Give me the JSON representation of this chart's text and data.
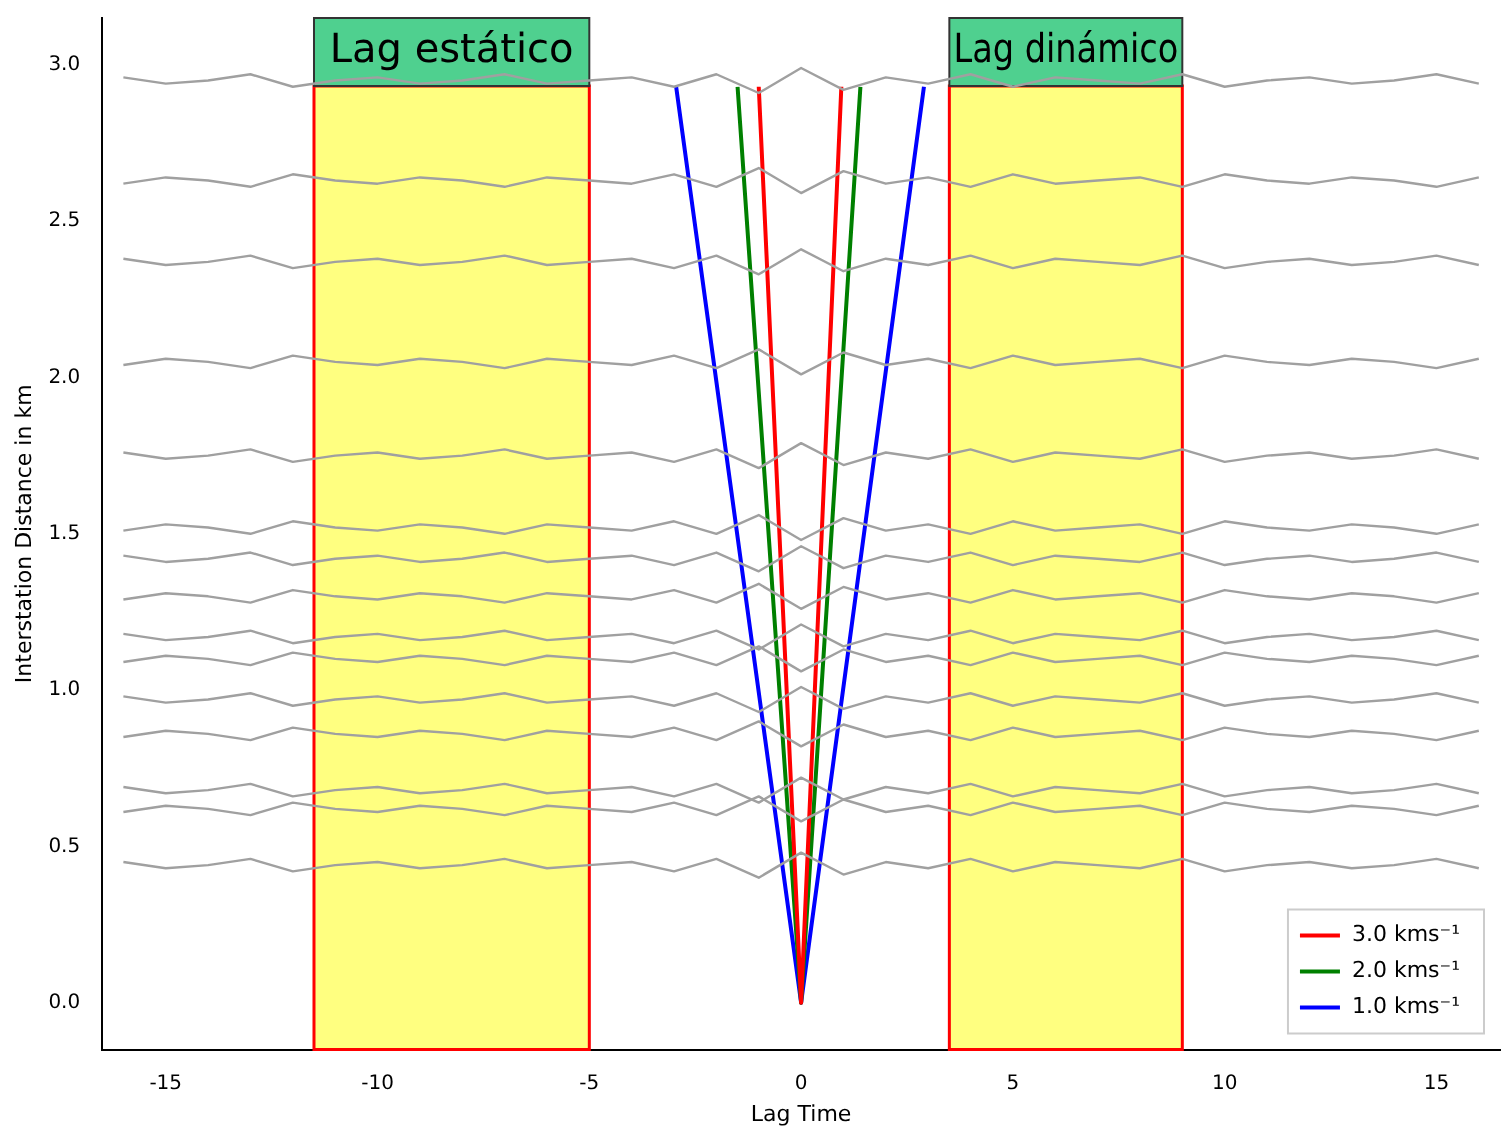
{
  "chart_data": {
    "type": "line",
    "xlabel": "Lag Time",
    "ylabel": "Interstation Distance in km",
    "marker": "none",
    "legend": "bottom right",
    "x": [
      -16,
      -15,
      -14,
      -13,
      -12,
      -11,
      -10,
      -9,
      -8,
      -7,
      -6,
      -5,
      -4,
      -3,
      -2,
      -1,
      0,
      1,
      2,
      3,
      4,
      5,
      6,
      7,
      8,
      9,
      10,
      11,
      12,
      13,
      14,
      15,
      16
    ],
    "xlim": [
      -16.5,
      16.5
    ],
    "xticks": [
      -15,
      -10,
      -5,
      0,
      5,
      10,
      15
    ],
    "ylim": [
      -0.15,
      3.15
    ],
    "yticks": [
      {
        "value": 0,
        "label": "0.0"
      },
      0.5,
      {
        "value": 1,
        "label": "1.0"
      },
      1.5,
      {
        "value": 2,
        "label": "2.0"
      },
      2.5,
      {
        "value": 3,
        "label": "3.0"
      }
    ],
    "bands": [
      {
        "axis": "x",
        "from": -11.5,
        "to": -5,
        "label": "Lag estático",
        "color": "#ffff80"
      },
      {
        "axis": "x",
        "from": 3.5,
        "to": 9,
        "label": "Lag dinámico",
        "color": "#ffff80"
      }
    ],
    "series": [
      {
        "color": "#a0a0a0",
        "values": [
          0.45,
          0.43,
          0.44,
          0.46,
          0.42,
          0.44,
          0.45,
          0.43,
          0.44,
          0.46,
          0.43,
          0.44,
          0.45,
          0.42,
          0.46,
          0.4,
          0.48,
          0.41,
          0.45,
          0.43,
          0.46,
          0.42,
          0.45,
          0.44,
          0.43,
          0.46,
          0.42,
          0.44,
          0.45,
          0.43,
          0.44,
          0.46,
          0.43
        ]
      },
      {
        "color": "#a0a0a0",
        "values": [
          0.61,
          0.63,
          0.62,
          0.6,
          0.64,
          0.62,
          0.61,
          0.63,
          0.62,
          0.6,
          0.63,
          0.62,
          0.61,
          0.64,
          0.6,
          0.66,
          0.58,
          0.65,
          0.61,
          0.63,
          0.6,
          0.64,
          0.61,
          0.62,
          0.63,
          0.6,
          0.64,
          0.62,
          0.61,
          0.63,
          0.62,
          0.6,
          0.63
        ]
      },
      {
        "color": "#a0a0a0",
        "values": [
          0.69,
          0.67,
          0.68,
          0.7,
          0.66,
          0.68,
          0.69,
          0.67,
          0.68,
          0.7,
          0.67,
          0.68,
          0.69,
          0.66,
          0.7,
          0.64,
          0.72,
          0.65,
          0.69,
          0.67,
          0.7,
          0.66,
          0.69,
          0.68,
          0.67,
          0.7,
          0.66,
          0.68,
          0.69,
          0.67,
          0.68,
          0.7,
          0.67
        ]
      },
      {
        "color": "#a0a0a0",
        "values": [
          0.85,
          0.87,
          0.86,
          0.84,
          0.88,
          0.86,
          0.85,
          0.87,
          0.86,
          0.84,
          0.87,
          0.86,
          0.85,
          0.88,
          0.84,
          0.9,
          0.82,
          0.89,
          0.85,
          0.87,
          0.84,
          0.88,
          0.85,
          0.86,
          0.87,
          0.84,
          0.88,
          0.86,
          0.85,
          0.87,
          0.86,
          0.84,
          0.87
        ]
      },
      {
        "color": "#a0a0a0",
        "values": [
          0.98,
          0.96,
          0.97,
          0.99,
          0.95,
          0.97,
          0.98,
          0.96,
          0.97,
          0.99,
          0.96,
          0.97,
          0.98,
          0.95,
          0.99,
          0.93,
          1.01,
          0.94,
          0.98,
          0.96,
          0.99,
          0.95,
          0.98,
          0.97,
          0.96,
          0.99,
          0.95,
          0.97,
          0.98,
          0.96,
          0.97,
          0.99,
          0.96
        ]
      },
      {
        "color": "#a0a0a0",
        "values": [
          1.09,
          1.11,
          1.1,
          1.08,
          1.12,
          1.1,
          1.09,
          1.11,
          1.1,
          1.08,
          1.11,
          1.1,
          1.09,
          1.12,
          1.08,
          1.14,
          1.06,
          1.13,
          1.09,
          1.11,
          1.08,
          1.12,
          1.09,
          1.1,
          1.11,
          1.08,
          1.12,
          1.1,
          1.09,
          1.11,
          1.1,
          1.08,
          1.11
        ]
      },
      {
        "color": "#a0a0a0",
        "values": [
          1.18,
          1.16,
          1.17,
          1.19,
          1.15,
          1.17,
          1.18,
          1.16,
          1.17,
          1.19,
          1.16,
          1.17,
          1.18,
          1.15,
          1.19,
          1.13,
          1.21,
          1.14,
          1.18,
          1.16,
          1.19,
          1.15,
          1.18,
          1.17,
          1.16,
          1.19,
          1.15,
          1.17,
          1.18,
          1.16,
          1.17,
          1.19,
          1.16
        ]
      },
      {
        "color": "#a0a0a0",
        "values": [
          1.29,
          1.31,
          1.3,
          1.28,
          1.32,
          1.3,
          1.29,
          1.31,
          1.3,
          1.28,
          1.31,
          1.3,
          1.29,
          1.32,
          1.28,
          1.34,
          1.26,
          1.33,
          1.29,
          1.31,
          1.28,
          1.32,
          1.29,
          1.3,
          1.31,
          1.28,
          1.32,
          1.3,
          1.29,
          1.31,
          1.3,
          1.28,
          1.31
        ]
      },
      {
        "color": "#a0a0a0",
        "values": [
          1.43,
          1.41,
          1.42,
          1.44,
          1.4,
          1.42,
          1.43,
          1.41,
          1.42,
          1.44,
          1.41,
          1.42,
          1.43,
          1.4,
          1.44,
          1.38,
          1.46,
          1.39,
          1.43,
          1.41,
          1.44,
          1.4,
          1.43,
          1.42,
          1.41,
          1.44,
          1.4,
          1.42,
          1.43,
          1.41,
          1.42,
          1.44,
          1.41
        ]
      },
      {
        "color": "#a0a0a0",
        "values": [
          1.51,
          1.53,
          1.52,
          1.5,
          1.54,
          1.52,
          1.51,
          1.53,
          1.52,
          1.5,
          1.53,
          1.52,
          1.51,
          1.54,
          1.5,
          1.56,
          1.48,
          1.55,
          1.51,
          1.53,
          1.5,
          1.54,
          1.51,
          1.52,
          1.53,
          1.5,
          1.54,
          1.52,
          1.51,
          1.53,
          1.52,
          1.5,
          1.53
        ]
      },
      {
        "color": "#a0a0a0",
        "values": [
          1.76,
          1.74,
          1.75,
          1.77,
          1.73,
          1.75,
          1.76,
          1.74,
          1.75,
          1.77,
          1.74,
          1.75,
          1.76,
          1.73,
          1.77,
          1.71,
          1.79,
          1.72,
          1.76,
          1.74,
          1.77,
          1.73,
          1.76,
          1.75,
          1.74,
          1.77,
          1.73,
          1.75,
          1.76,
          1.74,
          1.75,
          1.77,
          1.74
        ]
      },
      {
        "color": "#a0a0a0",
        "values": [
          2.04,
          2.06,
          2.05,
          2.03,
          2.07,
          2.05,
          2.04,
          2.06,
          2.05,
          2.03,
          2.06,
          2.05,
          2.04,
          2.07,
          2.03,
          2.09,
          2.01,
          2.08,
          2.04,
          2.06,
          2.03,
          2.07,
          2.04,
          2.05,
          2.06,
          2.03,
          2.07,
          2.05,
          2.04,
          2.06,
          2.05,
          2.03,
          2.06
        ]
      },
      {
        "color": "#a0a0a0",
        "values": [
          2.38,
          2.36,
          2.37,
          2.39,
          2.35,
          2.37,
          2.38,
          2.36,
          2.37,
          2.39,
          2.36,
          2.37,
          2.38,
          2.35,
          2.39,
          2.33,
          2.41,
          2.34,
          2.38,
          2.36,
          2.39,
          2.35,
          2.38,
          2.37,
          2.36,
          2.39,
          2.35,
          2.37,
          2.38,
          2.36,
          2.37,
          2.39,
          2.36
        ]
      },
      {
        "color": "#a0a0a0",
        "values": [
          2.62,
          2.64,
          2.63,
          2.61,
          2.65,
          2.63,
          2.62,
          2.64,
          2.63,
          2.61,
          2.64,
          2.63,
          2.62,
          2.65,
          2.61,
          2.67,
          2.59,
          2.66,
          2.62,
          2.64,
          2.61,
          2.65,
          2.62,
          2.63,
          2.64,
          2.61,
          2.65,
          2.63,
          2.62,
          2.64,
          2.63,
          2.61,
          2.64
        ]
      },
      {
        "color": "#a0a0a0",
        "values": [
          2.96,
          2.94,
          2.95,
          2.97,
          2.93,
          2.95,
          2.96,
          2.94,
          2.95,
          2.97,
          2.94,
          2.95,
          2.96,
          2.93,
          2.97,
          2.91,
          2.99,
          2.92,
          2.96,
          2.94,
          2.97,
          2.93,
          2.96,
          2.95,
          2.94,
          2.97,
          2.93,
          2.95,
          2.96,
          2.94,
          2.95,
          2.97,
          2.94
        ]
      },
      {
        "name": "3.0 kms⁻¹",
        "color": "#ff0000",
        "x": [
          -1.0,
          0,
          0.95
        ],
        "values": [
          2.93,
          0,
          2.93
        ]
      },
      {
        "name": "2.0 kms⁻¹",
        "color": "#008000",
        "x": [
          -1.5,
          0,
          1.4
        ],
        "values": [
          2.93,
          0,
          2.93
        ]
      },
      {
        "name": "1.0 kms⁻¹",
        "color": "#0000ff",
        "x": [
          -2.95,
          0,
          2.9
        ],
        "values": [
          2.93,
          0,
          2.93
        ]
      }
    ]
  }
}
